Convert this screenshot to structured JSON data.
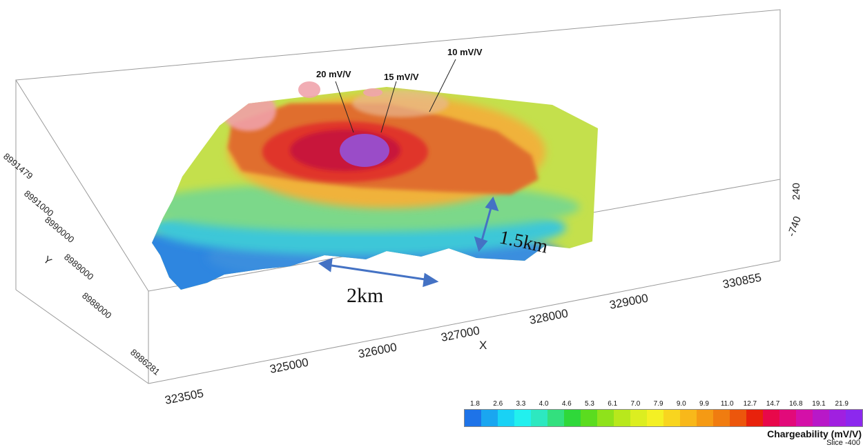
{
  "annotations": {
    "contour_20": "20 mV/V",
    "contour_15": "15 mV/V",
    "contour_10": "10 mV/V",
    "width_measure": "2km",
    "depth_measure": "1.5km"
  },
  "axes": {
    "x_label": "X",
    "x_ticks": [
      "323505",
      "325000",
      "326000",
      "327000",
      "328000",
      "329000",
      "330855"
    ],
    "y_label": "Y",
    "y_ticks": [
      "8986281",
      "8988000",
      "8989000",
      "8990000",
      "8991000",
      "8991479"
    ],
    "z_ticks": [
      "240",
      "-740"
    ]
  },
  "colorbar": {
    "title": "Chargeability (mV/V)",
    "subtitle": "Slice -400",
    "tick_labels": [
      "1.8",
      "2.6",
      "3.3",
      "4.0",
      "4.6",
      "5.3",
      "6.1",
      "7.0",
      "7.9",
      "9.0",
      "9.9",
      "11.0",
      "12.7",
      "14.7",
      "16.8",
      "19.1",
      "21.9"
    ],
    "colors": [
      "#1e73e8",
      "#1aa6f0",
      "#19d2f5",
      "#22f0ee",
      "#2de8c0",
      "#33e07e",
      "#2fd83a",
      "#5bdc1f",
      "#8fe21b",
      "#b8e81c",
      "#dcee20",
      "#f4f024",
      "#f8d51f",
      "#f8b81a",
      "#f59a14",
      "#f07c10",
      "#ec560c",
      "#e8220c",
      "#e8084a",
      "#e20a7a",
      "#d410a8",
      "#b818c8",
      "#a020e0",
      "#8c28ee"
    ]
  }
}
